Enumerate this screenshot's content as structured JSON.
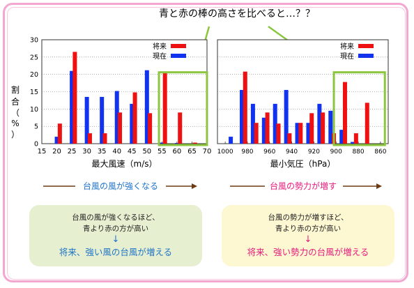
{
  "callout": "青と赤の棒の高さを比べると…？？",
  "ylabel_chars": [
    "割",
    "合",
    "（",
    "%",
    "）"
  ],
  "yticks": [
    0,
    5,
    10,
    15,
    20,
    25,
    30
  ],
  "legend": {
    "future": "将来",
    "present": "現在"
  },
  "colors": {
    "future": "#ee1111",
    "present": "#1133ee",
    "highlight": "#8cc63f",
    "pink": "#e8197c",
    "blue": "#1e73c8",
    "arrow": "#6b3a12"
  },
  "trend_left": "台風の風が強くなる",
  "trend_right": "台風の勢力が増す",
  "box_left": {
    "line1": "台風の風が強くなるほど、",
    "line2": "青より赤の方が高い",
    "arrow": "↓",
    "result": "将来、強い風の台風が増える"
  },
  "box_right": {
    "line1": "台風の勢力が増すほど、",
    "line2": "青より赤の方が高い",
    "arrow": "↓",
    "result": "将来、強い勢力の台風が増える"
  },
  "chart_data": [
    {
      "type": "bar",
      "xlabel": "最大風速（m/s）",
      "ylabel": "割合（%）",
      "ylim": [
        0,
        30
      ],
      "xticks": [
        "15",
        "20",
        "25",
        "30",
        "35",
        "40",
        "45",
        "50",
        "55",
        "60",
        "65",
        "70"
      ],
      "series": [
        {
          "name": "現在",
          "x": [
            20,
            25,
            30,
            35,
            40,
            45,
            50,
            55,
            60
          ],
          "values": [
            2,
            21,
            13.5,
            13.5,
            15.2,
            11.5,
            21.2,
            0.3,
            0.2
          ]
        },
        {
          "name": "将来",
          "x": [
            21,
            26,
            31,
            36,
            41,
            46,
            51,
            56,
            61,
            66
          ],
          "values": [
            5.8,
            26.5,
            3,
            3,
            9,
            14.8,
            8.8,
            20.8,
            9,
            0.3
          ]
        }
      ],
      "highlight_range": [
        54,
        70
      ]
    },
    {
      "type": "bar",
      "xlabel": "最小気圧（hPa）",
      "ylabel": "割合（%）",
      "ylim": [
        0,
        30
      ],
      "xticks": [
        "1000",
        "980",
        "960",
        "940",
        "920",
        "900",
        "880",
        "860"
      ],
      "series": [
        {
          "name": "現在",
          "x": [
            995,
            985,
            975,
            965,
            955,
            945,
            935,
            925,
            915,
            905,
            895,
            885
          ],
          "values": [
            2,
            15.5,
            11.5,
            7.5,
            11.5,
            15.5,
            6,
            6,
            11.5,
            9.5,
            4,
            0.5
          ]
        },
        {
          "name": "将来",
          "x": [
            982,
            972,
            962,
            952,
            942,
            932,
            922,
            912,
            902,
            892,
            882,
            872
          ],
          "values": [
            20.8,
            6,
            9,
            5.8,
            3,
            6,
            8.8,
            9,
            3,
            17.8,
            3,
            11.8
          ]
        }
      ],
      "highlight_range": [
        902,
        856
      ]
    }
  ]
}
